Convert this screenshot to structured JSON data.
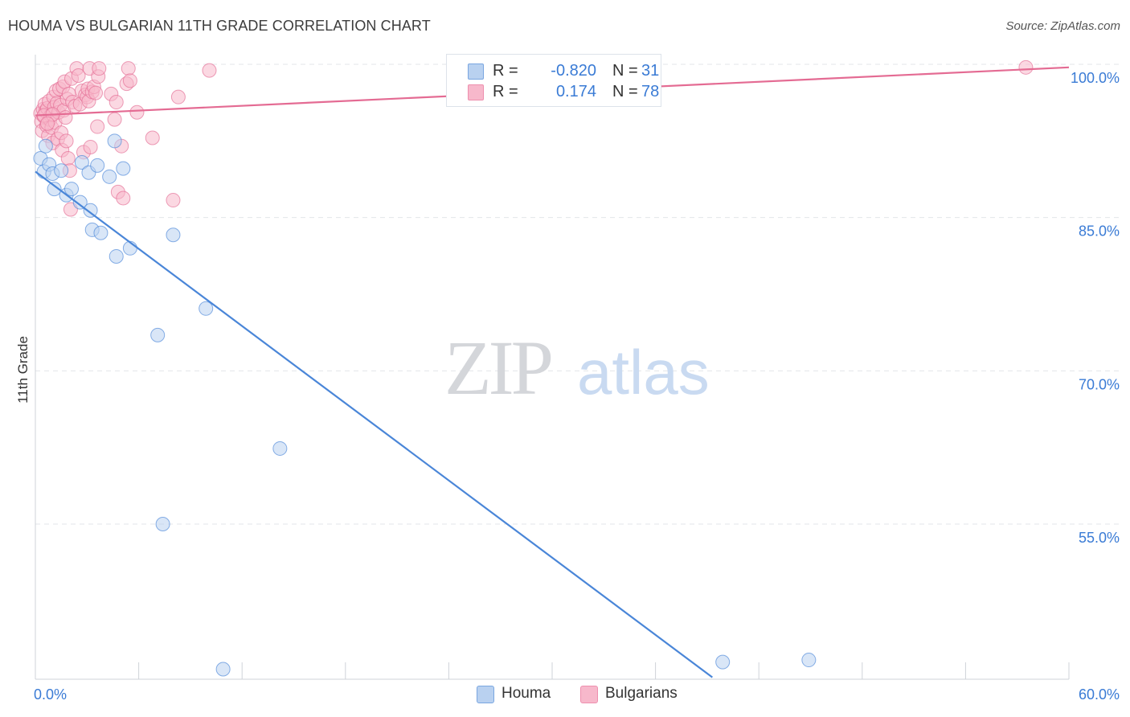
{
  "chart_data": {
    "type": "scatter",
    "title": "HOUMA VS BULGARIAN 11TH GRADE CORRELATION CHART",
    "source": "Source: ZipAtlas.com",
    "xlabel": "",
    "ylabel": "11th Grade",
    "xlim": [
      0,
      60
    ],
    "ylim": [
      40,
      102
    ],
    "x_tick_labels": [
      "0.0%",
      "60.0%"
    ],
    "y_ticks": [
      55,
      70,
      85,
      100
    ],
    "y_tick_labels": [
      "55.0%",
      "70.0%",
      "85.0%",
      "100.0%"
    ],
    "grid": true,
    "watermark": {
      "zip": "ZIP",
      "atlas": "atlas"
    },
    "legend": {
      "r_label": "R =",
      "n_label": "N =",
      "entries": [
        {
          "name": "Houma",
          "r": "-0.820",
          "n": "31"
        },
        {
          "name": "Bulgarians",
          "r": "0.174",
          "n": "78"
        }
      ]
    },
    "series": [
      {
        "name": "Houma",
        "color": "#4a86d8",
        "fill": "#b9d1f0",
        "trend": {
          "x": [
            0.0,
            39.3
          ],
          "y": [
            89.5,
            40.0
          ]
        },
        "points": [
          [
            0.3,
            90.8
          ],
          [
            0.5,
            89.5
          ],
          [
            0.6,
            92.0
          ],
          [
            0.8,
            90.2
          ],
          [
            1.0,
            89.3
          ],
          [
            1.1,
            87.8
          ],
          [
            1.5,
            89.6
          ],
          [
            1.8,
            87.2
          ],
          [
            2.1,
            87.8
          ],
          [
            2.6,
            86.5
          ],
          [
            2.7,
            90.4
          ],
          [
            3.1,
            89.4
          ],
          [
            3.2,
            85.7
          ],
          [
            3.3,
            83.8
          ],
          [
            3.6,
            90.1
          ],
          [
            3.8,
            83.5
          ],
          [
            4.3,
            89.0
          ],
          [
            4.6,
            92.5
          ],
          [
            4.7,
            81.2
          ],
          [
            5.1,
            89.8
          ],
          [
            5.5,
            82.0
          ],
          [
            7.1,
            73.5
          ],
          [
            7.4,
            55.0
          ],
          [
            8.0,
            83.3
          ],
          [
            9.9,
            76.1
          ],
          [
            10.9,
            40.8
          ],
          [
            14.2,
            62.4
          ],
          [
            39.9,
            41.5
          ],
          [
            44.9,
            41.7
          ]
        ]
      },
      {
        "name": "Bulgarians",
        "color": "#e46b93",
        "fill": "#f7b8cb",
        "trend": {
          "x": [
            0.0,
            60.0
          ],
          "y": [
            95.0,
            99.7
          ]
        },
        "points": [
          [
            0.3,
            95.2
          ],
          [
            0.35,
            94.4
          ],
          [
            0.4,
            93.5
          ],
          [
            0.45,
            95.6
          ],
          [
            0.5,
            94.9
          ],
          [
            0.55,
            96.1
          ],
          [
            0.6,
            95.4
          ],
          [
            0.65,
            94.0
          ],
          [
            0.7,
            95.7
          ],
          [
            0.75,
            93.0
          ],
          [
            0.8,
            96.4
          ],
          [
            0.85,
            94.6
          ],
          [
            0.9,
            95.0
          ],
          [
            0.95,
            93.8
          ],
          [
            1.0,
            92.3
          ],
          [
            1.05,
            96.8
          ],
          [
            1.1,
            95.8
          ],
          [
            1.15,
            94.3
          ],
          [
            1.2,
            97.4
          ],
          [
            1.25,
            96.2
          ],
          [
            1.3,
            92.7
          ],
          [
            1.35,
            95.3
          ],
          [
            1.4,
            97.6
          ],
          [
            1.45,
            96.0
          ],
          [
            1.5,
            93.3
          ],
          [
            1.55,
            91.6
          ],
          [
            1.6,
            97.8
          ],
          [
            1.65,
            95.5
          ],
          [
            1.7,
            98.3
          ],
          [
            1.75,
            94.8
          ],
          [
            1.8,
            92.5
          ],
          [
            1.85,
            96.6
          ],
          [
            1.9,
            90.8
          ],
          [
            1.95,
            97.1
          ],
          [
            2.0,
            89.6
          ],
          [
            2.05,
            85.8
          ],
          [
            2.1,
            98.6
          ],
          [
            2.15,
            96.3
          ],
          [
            2.3,
            95.9
          ],
          [
            2.4,
            99.6
          ],
          [
            2.5,
            98.9
          ],
          [
            2.6,
            96.1
          ],
          [
            2.7,
            97.4
          ],
          [
            2.8,
            91.4
          ],
          [
            2.9,
            97.0
          ],
          [
            3.0,
            96.8
          ],
          [
            3.05,
            97.6
          ],
          [
            3.1,
            96.4
          ],
          [
            3.15,
            99.6
          ],
          [
            3.2,
            91.9
          ],
          [
            3.3,
            97.3
          ],
          [
            3.4,
            97.8
          ],
          [
            3.5,
            97.2
          ],
          [
            3.6,
            93.9
          ],
          [
            3.65,
            98.8
          ],
          [
            3.7,
            99.6
          ],
          [
            4.4,
            97.1
          ],
          [
            4.6,
            94.6
          ],
          [
            4.7,
            96.3
          ],
          [
            4.8,
            87.5
          ],
          [
            5.0,
            92.0
          ],
          [
            5.1,
            86.9
          ],
          [
            5.3,
            98.1
          ],
          [
            5.4,
            99.6
          ],
          [
            5.5,
            98.4
          ],
          [
            5.9,
            95.3
          ],
          [
            6.8,
            92.8
          ],
          [
            8.0,
            86.7
          ],
          [
            8.3,
            96.8
          ],
          [
            10.1,
            99.4
          ],
          [
            57.5,
            99.7
          ],
          [
            0.5,
            95.0
          ],
          [
            1.0,
            95.1
          ],
          [
            0.7,
            94.2
          ]
        ]
      }
    ]
  }
}
